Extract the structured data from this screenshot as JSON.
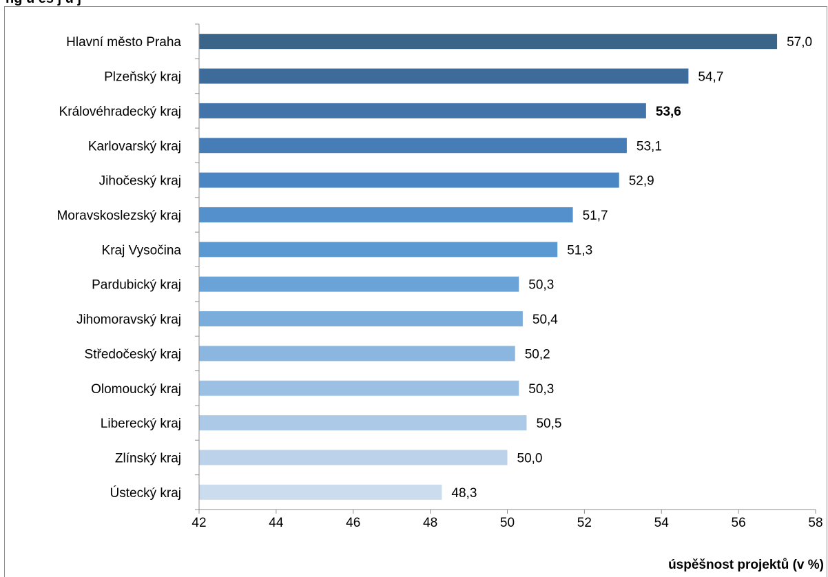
{
  "caption": "ng ú ěš   j  ů     j",
  "chart_data": {
    "type": "bar",
    "orientation": "horizontal",
    "categories": [
      "Hlavní město Praha",
      "Plzeňský kraj",
      "Královéhradecký kraj",
      "Karlovarský kraj",
      "Jihočeský kraj",
      "Moravskoslezský kraj",
      "Kraj Vysočina",
      "Pardubický kraj",
      "Jihomoravský kraj",
      "Středočeský kraj",
      "Olomoucký kraj",
      "Liberecký kraj",
      "Zlínský kraj",
      "Ústecký kraj"
    ],
    "values": [
      57.0,
      54.7,
      53.6,
      53.1,
      52.9,
      51.7,
      51.3,
      50.3,
      50.4,
      50.2,
      50.3,
      50.5,
      50.0,
      48.3
    ],
    "value_labels": [
      "57,0",
      "54,7",
      "53,6",
      "53,1",
      "52,9",
      "51,7",
      "51,3",
      "50,3",
      "50,4",
      "50,2",
      "50,3",
      "50,5",
      "50,0",
      "48,3"
    ],
    "highlighted_index": 2,
    "colors": [
      "#3b6489",
      "#3e6c9a",
      "#4274aa",
      "#467db7",
      "#4a86c3",
      "#5390cc",
      "#5b99d3",
      "#6aa3d8",
      "#7aacdc",
      "#8ab6e0",
      "#9cc0e3",
      "#acc9e8",
      "#bcd2eb",
      "#ccdcef"
    ],
    "xlim": [
      42,
      58
    ],
    "xticks": [
      42,
      44,
      46,
      48,
      50,
      52,
      54,
      56,
      58
    ],
    "xtick_labels": [
      "42",
      "44",
      "46",
      "48",
      "50",
      "52",
      "54",
      "56",
      "58"
    ],
    "xlabel": "úspěšnost projektů (v %)",
    "ylabel": "",
    "title": "",
    "grid": false,
    "legend": "none"
  }
}
